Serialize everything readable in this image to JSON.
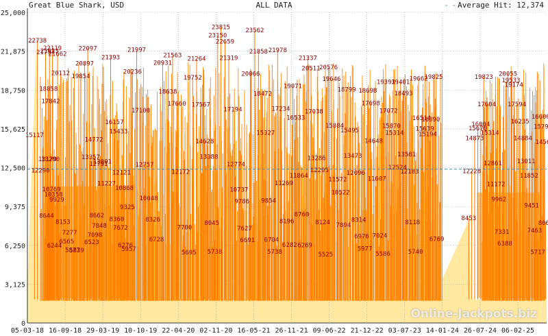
{
  "header": {
    "title": "Great Blue Shark, USD",
    "range": "ALL DATA",
    "average_label": "Average Hit: 12,374"
  },
  "watermark": "Online-Jackpots.biz",
  "colors": {
    "fill_light": "#ffe9a0",
    "bar": "#ff8c00",
    "bar_dark": "#ff7a00",
    "label": "#8b0000",
    "avg_line": "#3a8fb0",
    "grid": "#9a9a9a"
  },
  "chart_data": {
    "type": "area",
    "title": "Great Blue Shark, USD",
    "xlabel": "",
    "ylabel": "",
    "ylim": [
      0,
      25000
    ],
    "yticks": [
      "0",
      "3,125",
      "6,250",
      "9,375",
      "12,500",
      "15,625",
      "18,750",
      "21,875",
      "25,000"
    ],
    "ytick_values": [
      0,
      3125,
      6250,
      9375,
      12500,
      15625,
      18750,
      21875,
      25000
    ],
    "xticks": [
      "05-03-18",
      "16-09-18",
      "29-03-19",
      "10-10-19",
      "22-04-20",
      "02-11-20",
      "16-05-21",
      "26-11-21",
      "09-06-22",
      "21-12-22",
      "03-07-23",
      "14-01-24",
      "26-07-24",
      "06-02-25"
    ],
    "x_start": "2018-03-05",
    "x_end": "2025-05-20",
    "average": 12374,
    "grid": true,
    "gap": [
      "2023-12-10",
      "2024-04-15"
    ],
    "labeled_hits": [
      {
        "date": "2018-04-25",
        "value": 22738
      },
      {
        "date": "2018-04-10",
        "value": 15117
      },
      {
        "date": "2018-05-10",
        "value": 12290
      },
      {
        "date": "2018-06-05",
        "value": 21797
      },
      {
        "date": "2018-06-25",
        "value": 21923
      },
      {
        "date": "2018-07-10",
        "value": 22119
      },
      {
        "date": "2018-08-05",
        "value": 21662
      },
      {
        "date": "2018-08-20",
        "value": 20112
      },
      {
        "date": "2018-06-20",
        "value": 18858
      },
      {
        "date": "2018-07-01",
        "value": 17842
      },
      {
        "date": "2018-06-15",
        "value": 13179
      },
      {
        "date": "2018-06-30",
        "value": 13200
      },
      {
        "date": "2018-07-05",
        "value": 10769
      },
      {
        "date": "2018-07-15",
        "value": 10358
      },
      {
        "date": "2018-08-01",
        "value": 9929
      },
      {
        "date": "2018-06-10",
        "value": 8644
      },
      {
        "date": "2018-09-01",
        "value": 8153
      },
      {
        "date": "2018-07-20",
        "value": 6244
      },
      {
        "date": "2018-09-20",
        "value": 6565
      },
      {
        "date": "2018-10-05",
        "value": 7277
      },
      {
        "date": "2018-10-20",
        "value": 5877
      },
      {
        "date": "2018-11-10",
        "value": 5839
      },
      {
        "date": "2018-12-01",
        "value": 19854
      },
      {
        "date": "2018-12-20",
        "value": 20897
      },
      {
        "date": "2019-01-05",
        "value": 22097
      },
      {
        "date": "2019-01-20",
        "value": 13357
      },
      {
        "date": "2019-02-05",
        "value": 14772
      },
      {
        "date": "2019-03-01",
        "value": 12791
      },
      {
        "date": "2019-03-20",
        "value": 13001
      },
      {
        "date": "2019-04-10",
        "value": 11227
      },
      {
        "date": "2019-02-20",
        "value": 8662
      },
      {
        "date": "2019-03-05",
        "value": 7848
      },
      {
        "date": "2019-02-10",
        "value": 7098
      },
      {
        "date": "2019-01-25",
        "value": 6523
      },
      {
        "date": "2019-05-01",
        "value": 21393
      },
      {
        "date": "2019-05-20",
        "value": 16157
      },
      {
        "date": "2019-06-10",
        "value": 15433
      },
      {
        "date": "2019-06-25",
        "value": 12121
      },
      {
        "date": "2019-07-10",
        "value": 10868
      },
      {
        "date": "2019-07-25",
        "value": 9325
      },
      {
        "date": "2019-06-01",
        "value": 8360
      },
      {
        "date": "2019-06-20",
        "value": 7672
      },
      {
        "date": "2019-07-15",
        "value": 6276
      },
      {
        "date": "2019-08-01",
        "value": 5957
      },
      {
        "date": "2019-08-20",
        "value": 20236
      },
      {
        "date": "2019-09-10",
        "value": 21997
      },
      {
        "date": "2019-10-01",
        "value": 17100
      },
      {
        "date": "2019-10-20",
        "value": 12757
      },
      {
        "date": "2019-11-10",
        "value": 10048
      },
      {
        "date": "2019-12-01",
        "value": 8326
      },
      {
        "date": "2019-12-20",
        "value": 6728
      },
      {
        "date": "2020-01-20",
        "value": 20931
      },
      {
        "date": "2020-02-15",
        "value": 18638
      },
      {
        "date": "2020-03-10",
        "value": 21563
      },
      {
        "date": "2020-04-01",
        "value": 17660
      },
      {
        "date": "2020-04-20",
        "value": 12172
      },
      {
        "date": "2020-05-10",
        "value": 7700
      },
      {
        "date": "2020-06-01",
        "value": 5695
      },
      {
        "date": "2020-06-20",
        "value": 19752
      },
      {
        "date": "2020-07-10",
        "value": 21264
      },
      {
        "date": "2020-08-01",
        "value": 17567
      },
      {
        "date": "2020-08-20",
        "value": 14628
      },
      {
        "date": "2020-09-10",
        "value": 13388
      },
      {
        "date": "2020-09-25",
        "value": 8045
      },
      {
        "date": "2020-10-10",
        "value": 5738
      },
      {
        "date": "2020-10-25",
        "value": 23150
      },
      {
        "date": "2020-11-10",
        "value": 23815
      },
      {
        "date": "2020-12-01",
        "value": 22659
      },
      {
        "date": "2020-12-20",
        "value": 21319
      },
      {
        "date": "2021-01-10",
        "value": 17194
      },
      {
        "date": "2021-01-25",
        "value": 12774
      },
      {
        "date": "2021-02-10",
        "value": 10737
      },
      {
        "date": "2021-02-25",
        "value": 9786
      },
      {
        "date": "2021-03-10",
        "value": 7627
      },
      {
        "date": "2021-03-25",
        "value": 6691
      },
      {
        "date": "2021-04-10",
        "value": 20066
      },
      {
        "date": "2021-05-01",
        "value": 23562
      },
      {
        "date": "2021-05-20",
        "value": 21858
      },
      {
        "date": "2021-06-10",
        "value": 18472
      },
      {
        "date": "2021-06-25",
        "value": 15327
      },
      {
        "date": "2021-07-10",
        "value": 9854
      },
      {
        "date": "2021-07-25",
        "value": 6704
      },
      {
        "date": "2021-08-10",
        "value": 5738
      },
      {
        "date": "2021-08-25",
        "value": 21978
      },
      {
        "date": "2021-09-10",
        "value": 17234
      },
      {
        "date": "2021-09-25",
        "value": 11269
      },
      {
        "date": "2021-10-10",
        "value": 8196
      },
      {
        "date": "2021-10-25",
        "value": 6282
      },
      {
        "date": "2021-11-10",
        "value": 19071
      },
      {
        "date": "2021-11-25",
        "value": 16533
      },
      {
        "date": "2021-12-10",
        "value": 11864
      },
      {
        "date": "2021-12-25",
        "value": 8760
      },
      {
        "date": "2022-01-10",
        "value": 6269
      },
      {
        "date": "2022-01-25",
        "value": 21337
      },
      {
        "date": "2022-02-10",
        "value": 20511
      },
      {
        "date": "2022-02-25",
        "value": 17038
      },
      {
        "date": "2022-03-10",
        "value": 13286
      },
      {
        "date": "2022-03-25",
        "value": 12295
      },
      {
        "date": "2022-04-10",
        "value": 8124
      },
      {
        "date": "2022-04-25",
        "value": 5525
      },
      {
        "date": "2022-05-10",
        "value": 20576
      },
      {
        "date": "2022-05-25",
        "value": 19646
      },
      {
        "date": "2022-06-10",
        "value": 15884
      },
      {
        "date": "2022-06-25",
        "value": 11572
      },
      {
        "date": "2022-07-10",
        "value": 10522
      },
      {
        "date": "2022-07-25",
        "value": 7894
      },
      {
        "date": "2022-08-10",
        "value": 18799
      },
      {
        "date": "2022-08-25",
        "value": 15495
      },
      {
        "date": "2022-09-10",
        "value": 13473
      },
      {
        "date": "2022-09-25",
        "value": 12096
      },
      {
        "date": "2022-10-10",
        "value": 8314
      },
      {
        "date": "2022-10-25",
        "value": 6976
      },
      {
        "date": "2022-11-10",
        "value": 5977
      },
      {
        "date": "2022-11-25",
        "value": 18698
      },
      {
        "date": "2022-12-10",
        "value": 17698
      },
      {
        "date": "2022-12-25",
        "value": 14648
      },
      {
        "date": "2023-01-10",
        "value": 11607
      },
      {
        "date": "2023-01-25",
        "value": 7024
      },
      {
        "date": "2023-02-10",
        "value": 5586
      },
      {
        "date": "2023-02-25",
        "value": 19393
      },
      {
        "date": "2023-03-10",
        "value": 17072
      },
      {
        "date": "2023-03-25",
        "value": 15870
      },
      {
        "date": "2023-04-10",
        "value": 15314
      },
      {
        "date": "2023-04-25",
        "value": 12524
      },
      {
        "date": "2023-05-10",
        "value": 19401
      },
      {
        "date": "2023-05-25",
        "value": 18493
      },
      {
        "date": "2023-06-10",
        "value": 13581
      },
      {
        "date": "2023-06-25",
        "value": 12183
      },
      {
        "date": "2023-07-10",
        "value": 8118
      },
      {
        "date": "2023-07-25",
        "value": 5740
      },
      {
        "date": "2023-08-10",
        "value": 19662
      },
      {
        "date": "2023-08-25",
        "value": 16514
      },
      {
        "date": "2023-09-10",
        "value": 15639
      },
      {
        "date": "2023-09-25",
        "value": 15194
      },
      {
        "date": "2023-10-10",
        "value": 16390
      },
      {
        "date": "2023-10-25",
        "value": 19825
      },
      {
        "date": "2023-11-10",
        "value": 6769
      },
      {
        "date": "2024-04-20",
        "value": 8453
      },
      {
        "date": "2024-05-05",
        "value": 12228
      },
      {
        "date": "2024-05-20",
        "value": 14873
      },
      {
        "date": "2024-06-05",
        "value": 15670
      },
      {
        "date": "2024-06-20",
        "value": 16004
      },
      {
        "date": "2024-07-05",
        "value": 19823
      },
      {
        "date": "2024-07-20",
        "value": 17604
      },
      {
        "date": "2024-08-05",
        "value": 15314
      },
      {
        "date": "2024-08-20",
        "value": 12861
      },
      {
        "date": "2024-09-05",
        "value": 11172
      },
      {
        "date": "2024-09-20",
        "value": 9962
      },
      {
        "date": "2024-10-05",
        "value": 7331
      },
      {
        "date": "2024-10-20",
        "value": 6388
      },
      {
        "date": "2024-11-05",
        "value": 20055
      },
      {
        "date": "2024-11-20",
        "value": 19533
      },
      {
        "date": "2024-12-05",
        "value": 19174
      },
      {
        "date": "2024-12-20",
        "value": 17594
      },
      {
        "date": "2025-01-05",
        "value": 16235
      },
      {
        "date": "2025-01-20",
        "value": 14884
      },
      {
        "date": "2025-02-05",
        "value": 13011
      },
      {
        "date": "2025-02-20",
        "value": 11852
      },
      {
        "date": "2025-03-05",
        "value": 9451
      },
      {
        "date": "2025-03-20",
        "value": 7463
      },
      {
        "date": "2025-04-05",
        "value": 5717
      },
      {
        "date": "2025-04-20",
        "value": 16600
      },
      {
        "date": "2025-05-01",
        "value": 15798
      },
      {
        "date": "2025-05-10",
        "value": 14561
      },
      {
        "date": "2025-05-15",
        "value": 8069
      }
    ]
  }
}
